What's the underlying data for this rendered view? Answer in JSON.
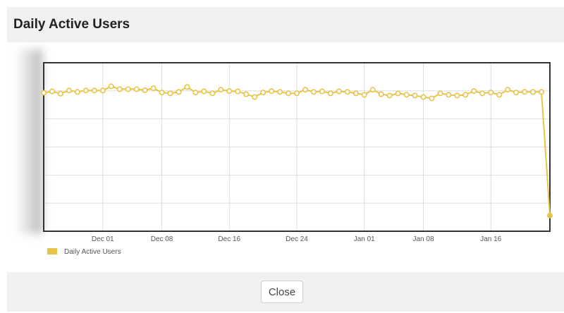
{
  "modal": {
    "title": "Daily Active Users",
    "close_label": "Close"
  },
  "colors": {
    "series": "#e8c34a",
    "grid": "#dddddd",
    "axis": "#333333",
    "header_bg": "#f0f0f0"
  },
  "chart_data": {
    "type": "line",
    "title": "",
    "xlabel": "",
    "ylabel": "",
    "x_start": "2023-11-24",
    "x_ticks": [
      "Dec 01",
      "Dec 08",
      "Dec 16",
      "Dec 24",
      "Jan 01",
      "Jan 08",
      "Jan 16"
    ],
    "grid": true,
    "legend_position": "bottom-left",
    "ylim": [
      0,
      6
    ],
    "series": [
      {
        "name": "Daily Active Users",
        "color": "#e8c34a",
        "values": [
          4.93,
          4.98,
          4.9,
          5.01,
          4.96,
          5.01,
          5.01,
          5.01,
          5.16,
          5.06,
          5.06,
          5.06,
          5.02,
          5.09,
          4.94,
          4.91,
          4.96,
          5.14,
          4.94,
          4.98,
          4.91,
          5.04,
          4.99,
          4.98,
          4.88,
          4.78,
          4.94,
          4.99,
          4.96,
          4.91,
          4.91,
          5.04,
          4.96,
          4.98,
          4.91,
          4.98,
          4.96,
          4.91,
          4.86,
          5.04,
          4.88,
          4.83,
          4.91,
          4.86,
          4.83,
          4.78,
          4.73,
          4.91,
          4.86,
          4.83,
          4.86,
          4.99,
          4.91,
          4.94,
          4.86,
          5.04,
          4.94,
          4.96,
          4.96,
          4.96,
          0.56
        ]
      }
    ]
  }
}
